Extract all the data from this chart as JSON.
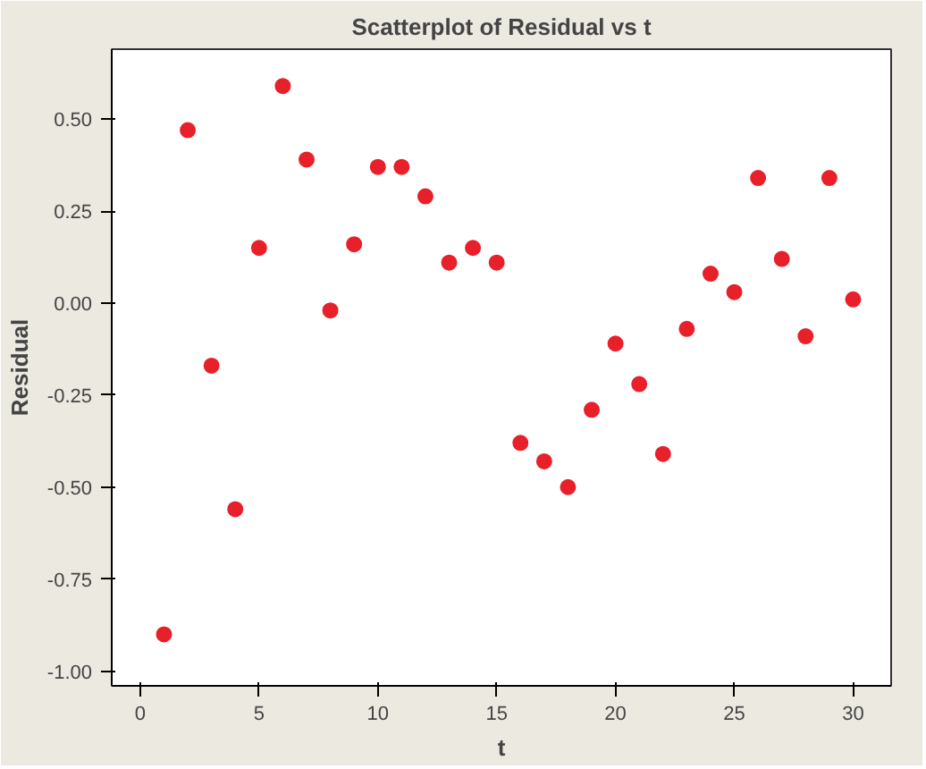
{
  "chart_data": {
    "type": "scatter",
    "title": "Scatterplot of Residual vs t",
    "xlabel": "t",
    "ylabel": "Residual",
    "x": [
      1,
      2,
      3,
      4,
      5,
      6,
      7,
      8,
      9,
      10,
      11,
      12,
      13,
      14,
      15,
      16,
      17,
      18,
      19,
      20,
      21,
      22,
      23,
      24,
      25,
      26,
      27,
      28,
      29,
      30
    ],
    "series": [
      {
        "color": "#e8202a",
        "values": [
          -0.9,
          0.47,
          -0.17,
          -0.56,
          0.15,
          0.59,
          0.39,
          -0.02,
          0.16,
          0.37,
          0.37,
          0.29,
          0.11,
          0.15,
          0.11,
          -0.38,
          -0.43,
          -0.5,
          -0.29,
          -0.11,
          -0.22,
          -0.41,
          -0.07,
          0.08,
          0.03,
          0.34,
          0.12,
          -0.09,
          0.34,
          0.01
        ]
      }
    ],
    "xlim": [
      -1.2,
      31.6
    ],
    "ylim": [
      -1.04,
      0.69
    ],
    "xticks": [
      0,
      5,
      10,
      15,
      20,
      25,
      30
    ],
    "yticks": [
      {
        "value": -1,
        "label": "-1.00"
      },
      {
        "value": -0.75,
        "label": "-0.75"
      },
      {
        "value": -0.5,
        "label": "-0.50"
      },
      {
        "value": -0.25,
        "label": "-0.25"
      },
      {
        "value": 0,
        "label": "0.00"
      },
      {
        "value": 0.25,
        "label": "0.25"
      },
      {
        "value": 0.5,
        "label": "0.50"
      }
    ],
    "marker": "circle",
    "grid": false
  }
}
